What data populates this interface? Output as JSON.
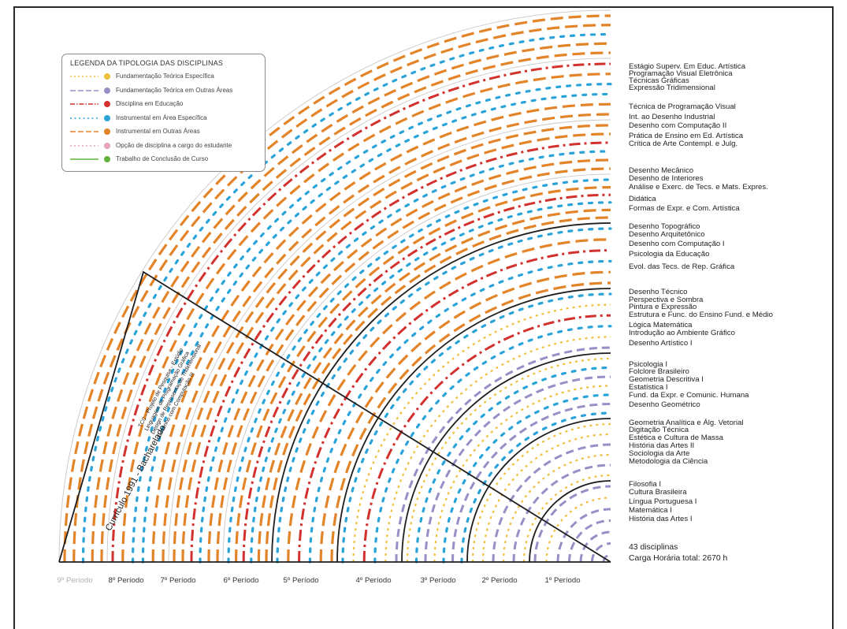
{
  "legend": {
    "title": "LEGENDA DA TIPOLOGIA DAS DISCIPLINAS",
    "items": [
      {
        "label": "Fundamentação Teórica Específica",
        "color": "#f0bf3c",
        "style": "dot"
      },
      {
        "label": "Fundamentação Teórica em Outras Áreas",
        "color": "#9b8dc6",
        "style": "dash"
      },
      {
        "label": "Disciplina em Educação",
        "color": "#d2312d",
        "style": "dashdot"
      },
      {
        "label": "Instrumental em Área Específica",
        "color": "#2aa3d9",
        "style": "dot2"
      },
      {
        "label": "Instrumental em Outras Áreas",
        "color": "#e38428",
        "style": "dash"
      },
      {
        "label": "Opção de disciplina a cargo do estudante",
        "color": "#e8a3b8",
        "style": "dot"
      },
      {
        "label": "Trabalho de Conclusão de Curso",
        "color": "#62b23a",
        "style": "solid"
      }
    ]
  },
  "courses": [
    "Estágio Superv. Em Educ. Artística",
    "Programação Visual Eletrônica",
    "Técnicas Gráficas",
    "Expressão Tridimensional",
    "Técnica de Programação Visual",
    "Int. ao Desenho Industrial",
    "Desenho com Computação II",
    "Prática de Ensino em Ed. Artística",
    "Crítica de Arte Contempl. e Julg.",
    "Desenho Mecânico",
    "Desenho de Interiores",
    "Análise e Exerc. de Tecs. e Mats. Expres.",
    "Didática",
    "Formas de Expr. e Com. Artística",
    "Desenho Topográfico",
    "Desenho Arquitetônico",
    "Desenho com Computação I",
    "Psicologia da Educação",
    "Evol. das Tecs. de Rep. Gráfica",
    "Desenho Técnico",
    "Perspectiva e Sombra",
    "Pintura e Expressão",
    "Estrutura e Func. do Ensino Fund. e Médio",
    "Lógica Matemática",
    "Introdução ao Ambiente Gráfico",
    "Desenho Artístico I",
    "Psicologia I",
    "Folclore Brasileiro",
    "Geometria Descritiva I",
    "Estatística I",
    "Fund. da Expr. e Comunic. Humana",
    "Desenho Geométrico",
    "Geometria Analítica e Álg. Vetorial",
    "Digitação Técnica",
    "Estética e Cultura de Massa",
    "História das Artes II",
    "Sociologia da Arte",
    "Metodologia da Ciência",
    "Filosofia I",
    "Cultura Brasileira",
    "Língua Portuguesa I",
    "Matemática I",
    "História das Artes I"
  ],
  "summary": {
    "count": "43 disciplinas",
    "hours": "Carga Horária total: 2670 h"
  },
  "periods": [
    "9º Período",
    "8º Período",
    "7º Período",
    "6º Período",
    "5º Período",
    "4º Período",
    "3º Período",
    "2º Período",
    "1º Período"
  ],
  "side_panel": {
    "title": "Currículo 1991 - Bacharelado",
    "options": [
      "TCC - Projeto de Pesquisa - Estúdio",
      "Linguagem da Programação Gráfica",
      "Design de Representação Tridimensional",
      "Desenho com Computação III"
    ]
  }
}
